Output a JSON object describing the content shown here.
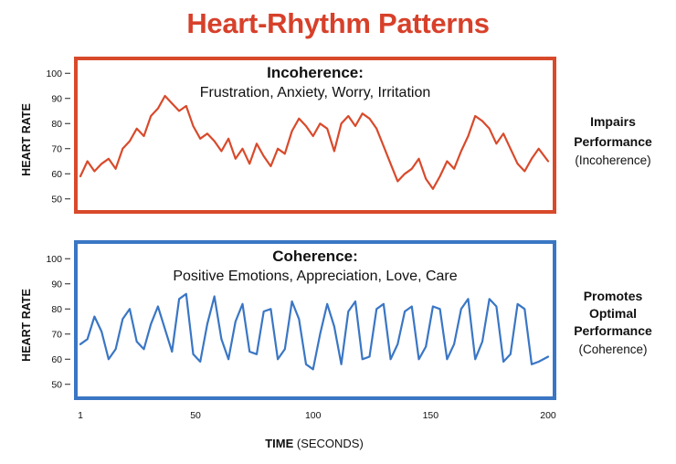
{
  "title": "Heart-Rhythm Patterns",
  "xlabel_bold": "TIME",
  "xlabel_unit": "(SECONDS)",
  "x_ticks": [
    1,
    50,
    100,
    150,
    200
  ],
  "colors": {
    "title": "#d7402a",
    "incoherence": "#d84a2b",
    "coherence": "#3a76c4"
  },
  "chart_data": [
    {
      "type": "line",
      "title": "Incoherence:",
      "subtitle": "Frustration, Anxiety, Worry, Irritation",
      "ylabel": "HEART RATE",
      "xlabel": "TIME (SECONDS)",
      "y_ticks": [
        50,
        60,
        70,
        80,
        90,
        100
      ],
      "ylim": [
        47,
        103
      ],
      "xlim": [
        1,
        200
      ],
      "side_label": [
        "Impairs",
        "Performance",
        "(Incoherence)"
      ],
      "series": [
        {
          "name": "Incoherence",
          "x": [
            1,
            4,
            7,
            10,
            13,
            16,
            19,
            22,
            25,
            28,
            31,
            34,
            37,
            40,
            43,
            46,
            49,
            52,
            55,
            58,
            61,
            64,
            67,
            70,
            73,
            76,
            79,
            82,
            85,
            88,
            91,
            94,
            97,
            100,
            103,
            106,
            109,
            112,
            115,
            118,
            121,
            124,
            127,
            130,
            133,
            136,
            139,
            142,
            145,
            148,
            151,
            154,
            157,
            160,
            163,
            166,
            169,
            172,
            175,
            178,
            181,
            184,
            187,
            190,
            193,
            196,
            200
          ],
          "values": [
            59,
            65,
            61,
            64,
            66,
            62,
            70,
            73,
            78,
            75,
            83,
            86,
            91,
            88,
            85,
            87,
            79,
            74,
            76,
            73,
            69,
            74,
            66,
            70,
            64,
            72,
            67,
            63,
            70,
            68,
            77,
            82,
            79,
            75,
            80,
            78,
            69,
            80,
            83,
            79,
            84,
            82,
            78,
            71,
            64,
            57,
            60,
            62,
            66,
            58,
            54,
            59,
            65,
            62,
            69,
            75,
            83,
            81,
            78,
            72,
            76,
            70,
            64,
            61,
            66,
            70,
            65
          ]
        }
      ]
    },
    {
      "type": "line",
      "title": "Coherence:",
      "subtitle": "Positive Emotions, Appreciation, Love, Care",
      "ylabel": "HEART RATE",
      "xlabel": "TIME (SECONDS)",
      "y_ticks": [
        50,
        60,
        70,
        80,
        90,
        100
      ],
      "ylim": [
        47,
        103
      ],
      "xlim": [
        1,
        200
      ],
      "side_label": [
        "Promotes",
        "Optimal",
        "Performance",
        "(Coherence)"
      ],
      "series": [
        {
          "name": "Coherence",
          "x": [
            1,
            4,
            7,
            10,
            13,
            16,
            19,
            22,
            25,
            28,
            31,
            34,
            37,
            40,
            43,
            46,
            49,
            52,
            55,
            58,
            61,
            64,
            67,
            70,
            73,
            76,
            79,
            82,
            85,
            88,
            91,
            94,
            97,
            100,
            103,
            106,
            109,
            112,
            115,
            118,
            121,
            124,
            127,
            130,
            133,
            136,
            139,
            142,
            145,
            148,
            151,
            154,
            157,
            160,
            163,
            166,
            169,
            172,
            175,
            178,
            181,
            184,
            187,
            190,
            193,
            196,
            200
          ],
          "values": [
            66,
            68,
            77,
            71,
            60,
            64,
            76,
            80,
            67,
            64,
            74,
            81,
            72,
            63,
            84,
            86,
            62,
            59,
            74,
            85,
            68,
            60,
            75,
            82,
            63,
            62,
            79,
            80,
            60,
            64,
            83,
            76,
            58,
            56,
            70,
            82,
            73,
            58,
            79,
            83,
            60,
            61,
            80,
            82,
            60,
            66,
            79,
            81,
            60,
            65,
            81,
            80,
            60,
            66,
            80,
            84,
            60,
            67,
            84,
            81,
            59,
            62,
            82,
            80,
            58,
            59,
            61
          ]
        }
      ]
    }
  ]
}
